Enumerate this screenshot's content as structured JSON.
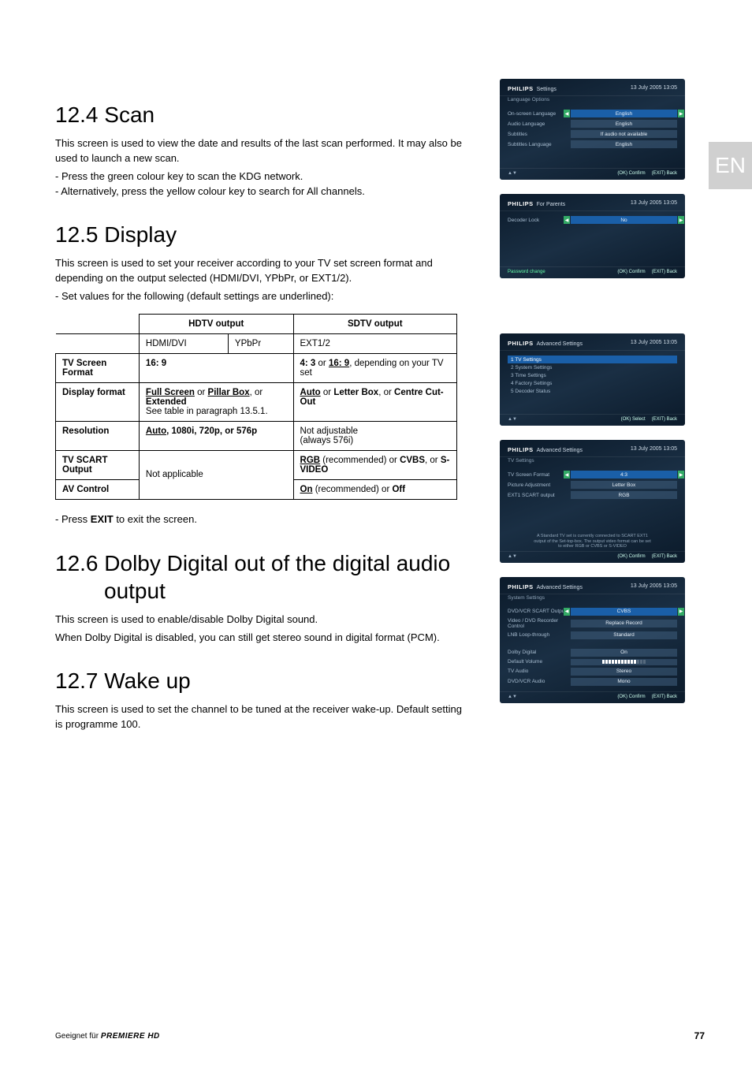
{
  "langTab": "EN",
  "sections": {
    "scan": {
      "heading": "12.4 Scan",
      "p1": "This screen is used to view the date and results of the last scan performed. It may also be used to launch a new scan.",
      "b1": "-  Press the green colour key to scan the KDG network.",
      "b2": "-  Alternatively, press the yellow colour key to search for All channels."
    },
    "display": {
      "heading": "12.5 Display",
      "p1": "This screen is used to set your receiver according to your TV set screen format and depending on the output selected (HDMI/DVI, YPbPr, or EXT1/2).",
      "b1": "-  Set values for the following (default settings are underlined):",
      "after": "-  Press EXIT to exit the screen.",
      "after_bold": "EXIT"
    },
    "dolby": {
      "heading_l1": "12.6 Dolby Digital out of the digital audio",
      "heading_l2": "output",
      "p1": "This screen is used to enable/disable Dolby Digital sound.",
      "p2": "When Dolby Digital is disabled, you can still get stereo sound in digital format (PCM)."
    },
    "wake": {
      "heading": "12.7 Wake up",
      "p1": "This screen is used to set the channel to be tuned at the receiver wake-up. Default setting is programme 100."
    }
  },
  "table": {
    "hdtv": "HDTV output",
    "sdtv": "SDTV output",
    "hdmi": "HDMI/DVI",
    "ypbpr": "YPbPr",
    "ext": "EXT1/2",
    "rows": {
      "screen": {
        "label": "TV Screen Format",
        "hdtv": "16: 9",
        "sdtv_pre": "4: 3",
        "sdtv_or": " or ",
        "sdtv_u": "16: 9",
        "sdtv_post": ", depending on your TV set"
      },
      "dispfmt": {
        "label": "Display format",
        "hdtv_b1": "Full Screen",
        "hdtv_or1": " or ",
        "hdtv_b2": "Pillar Box",
        "hdtv_or2": ", or ",
        "hdtv_b3": "Extended",
        "hdtv_line2": "See table in paragraph 13.5.1.",
        "sdtv_b1": "Auto",
        "sdtv_or1": " or ",
        "sdtv_b2": "Letter Box",
        "sdtv_or2": ", or ",
        "sdtv_b3": "Centre Cut-Out"
      },
      "res": {
        "label": "Resolution",
        "hdtv_u": "Auto",
        "hdtv_rest": ", 1080i, 720p, or 576p",
        "sdtv_l1": "Not adjustable",
        "sdtv_l2": "(always 576i)"
      },
      "scart": {
        "label": "TV SCART Output",
        "na": "Not applicable",
        "sdtv_b1": "RGB",
        "sdtv_mid": " (recommended) or ",
        "sdtv_b2": "CVBS",
        "sdtv_or": ", or ",
        "sdtv_b3": "S-VIDEO"
      },
      "av": {
        "label": "AV Control",
        "sdtv_b1": "On",
        "sdtv_mid": " (recommended) or ",
        "sdtv_b2": "Off"
      }
    }
  },
  "shots": {
    "brand": "PHILIPS",
    "date": "13 July 2005   13:05",
    "ok": "(OK) Confirm",
    "back": "(EXIT) Back",
    "select": "(OK) Select",
    "s1": {
      "title": "Settings",
      "sub": "Language Options",
      "rows": [
        {
          "label": "On-screen Language",
          "val": "English",
          "sel": true
        },
        {
          "label": "Audio Language",
          "val": "English"
        },
        {
          "label": "Subtitles",
          "val": "If audio not available"
        },
        {
          "label": "Subtitles Language",
          "val": "English"
        }
      ]
    },
    "s2": {
      "title": "For Parents",
      "sub": "",
      "rows": [
        {
          "label": "Decoder Lock",
          "val": "No",
          "sel": true
        }
      ],
      "footL": "Password change"
    },
    "s3": {
      "title": "Advanced Settings",
      "sub": "",
      "items": [
        "1  TV Settings",
        "2  System Settings",
        "3  Time Settings",
        "4  Factory Settings",
        "5  Decoder Status"
      ],
      "active": 0
    },
    "s4": {
      "title": "Advanced Settings",
      "sub": "TV Settings",
      "rows": [
        {
          "label": "TV Screen Format",
          "val": "4:3",
          "sel": true
        },
        {
          "label": "Picture Adjustment",
          "val": "Letter Box"
        },
        {
          "label": "EXT1 SCART output",
          "val": "RGB"
        }
      ],
      "hint": "A Standard TV set is currently connected to SCART EXT1 output of the Set-top-box. The output video format can be set to either RGB or CVBS or S-VIDEO"
    },
    "s5": {
      "title": "Advanced Settings",
      "sub": "System Settings",
      "rows": [
        {
          "label": "DVD/VCR SCART Output",
          "val": "CVBS",
          "sel": true
        },
        {
          "label": "Video / DVD Recorder Control",
          "val": "Replace Record"
        },
        {
          "label": "LNB Loop-through",
          "val": "Standard"
        },
        {
          "label": "",
          "val": ""
        },
        {
          "label": "Dolby Digital",
          "val": "On"
        },
        {
          "label": "Default Volume",
          "val": "VOLBAR"
        },
        {
          "label": "TV Audio",
          "val": "Stereo"
        },
        {
          "label": "DVD/VCR Audio",
          "val": "Mono"
        }
      ]
    }
  },
  "footer": {
    "left_pre": "Geeignet für ",
    "left_brand": "PREMIERE HD",
    "page": "77"
  }
}
